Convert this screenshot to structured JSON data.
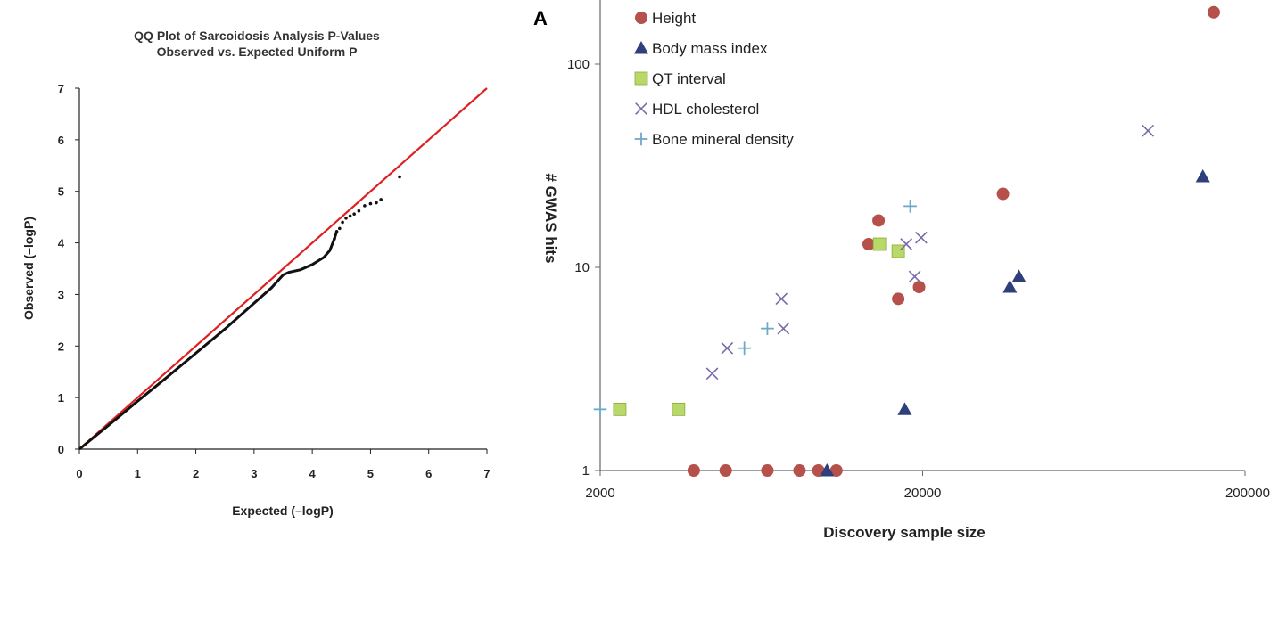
{
  "chart_data": [
    {
      "type": "scatter",
      "title": "QQ Plot of Sarcoidosis Analysis P-Values",
      "subtitle": "Observed vs. Expected Uniform P",
      "xlabel": "Expected (–logP)",
      "ylabel": "Observed (–logP)",
      "xlim": [
        0,
        7
      ],
      "ylim": [
        0,
        7
      ],
      "xticks": [
        "0",
        "1",
        "2",
        "3",
        "4",
        "5",
        "6",
        "7"
      ],
      "yticks": [
        "0",
        "1",
        "2",
        "3",
        "4",
        "5",
        "6",
        "7"
      ],
      "reference_line": {
        "x": [
          0,
          7
        ],
        "y": [
          0,
          7
        ],
        "color": "#e02020"
      },
      "series": [
        {
          "color": "#111111",
          "points": [
            [
              0,
              0
            ],
            [
              0.5,
              0.46
            ],
            [
              1.0,
              0.93
            ],
            [
              1.5,
              1.39
            ],
            [
              2.0,
              1.86
            ],
            [
              2.5,
              2.33
            ],
            [
              3.0,
              2.83
            ],
            [
              3.3,
              3.13
            ],
            [
              3.5,
              3.38
            ],
            [
              3.6,
              3.43
            ],
            [
              3.8,
              3.48
            ],
            [
              4.0,
              3.58
            ],
            [
              4.2,
              3.72
            ],
            [
              4.3,
              3.85
            ],
            [
              4.38,
              4.08
            ],
            [
              4.42,
              4.22
            ],
            [
              4.47,
              4.28
            ],
            [
              4.52,
              4.4
            ],
            [
              4.58,
              4.48
            ],
            [
              4.65,
              4.52
            ],
            [
              4.72,
              4.56
            ],
            [
              4.8,
              4.62
            ],
            [
              4.9,
              4.72
            ],
            [
              5.0,
              4.76
            ],
            [
              5.1,
              4.78
            ],
            [
              5.18,
              4.84
            ],
            [
              5.5,
              5.28
            ]
          ]
        }
      ]
    },
    {
      "type": "scatter",
      "panel_label": "A",
      "xlabel": "Discovery sample size",
      "ylabel": "# GWAS hits",
      "xscale": "log",
      "yscale": "log",
      "xlim": [
        2000,
        200000
      ],
      "ylim": [
        1,
        200
      ],
      "xticks": [
        "2000",
        "20000",
        "200000"
      ],
      "yticks": [
        "1",
        "10",
        "100"
      ],
      "legend_position": "top-left",
      "series": [
        {
          "name": "Height",
          "marker": "circle",
          "color": "#b5504a",
          "points": [
            [
              3900,
              1
            ],
            [
              4900,
              1
            ],
            [
              6600,
              1
            ],
            [
              8300,
              1
            ],
            [
              9500,
              1
            ],
            [
              10800,
              1
            ],
            [
              13600,
              13
            ],
            [
              14600,
              17
            ],
            [
              16800,
              7
            ],
            [
              19500,
              8
            ],
            [
              35500,
              23
            ],
            [
              160000,
              180
            ]
          ]
        },
        {
          "name": "Body mass index",
          "marker": "triangle",
          "color": "#2e3f7c",
          "points": [
            [
              10100,
              1
            ],
            [
              17600,
              2
            ],
            [
              37300,
              8
            ],
            [
              39800,
              9
            ],
            [
              148000,
              28
            ]
          ]
        },
        {
          "name": "QT interval",
          "marker": "square",
          "color": "#b8d96a",
          "points": [
            [
              2300,
              2
            ],
            [
              3500,
              2
            ],
            [
              14700,
              13
            ],
            [
              16800,
              12
            ]
          ]
        },
        {
          "name": "HDL cholesterol",
          "marker": "x",
          "color": "#7a6aa8",
          "points": [
            [
              4450,
              3
            ],
            [
              4950,
              4
            ],
            [
              7300,
              7
            ],
            [
              7400,
              5
            ],
            [
              17800,
              13
            ],
            [
              18900,
              9
            ],
            [
              19800,
              14
            ],
            [
              100000,
              47
            ]
          ]
        },
        {
          "name": "Bone mineral density",
          "marker": "plus",
          "color": "#6fa8c8",
          "points": [
            [
              2000,
              2
            ],
            [
              5600,
              4
            ],
            [
              6600,
              5
            ],
            [
              18300,
              20
            ]
          ]
        }
      ]
    }
  ]
}
